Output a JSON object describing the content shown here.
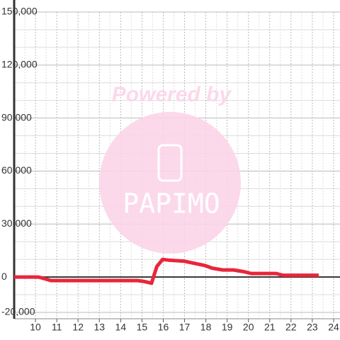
{
  "chart_data": {
    "type": "line",
    "watermark": {
      "line1": "Powered by",
      "line2": "PAPIMO"
    },
    "x": [
      9.0,
      10.13,
      10.3,
      10.73,
      14.8,
      15.1,
      15.45,
      15.7,
      15.97,
      16.3,
      16.97,
      17.97,
      18.3,
      18.8,
      19.3,
      19.8,
      20.13,
      21.3,
      21.63,
      23.3
    ],
    "series": [
      {
        "color": "#e8263c",
        "values": [
          0,
          0,
          -500,
          -2000,
          -2000,
          -2500,
          -3500,
          6000,
          10000,
          9500,
          9000,
          6500,
          5000,
          4000,
          4000,
          3000,
          2000,
          2000,
          1000,
          1000
        ]
      }
    ],
    "xlim": [
      9,
      24.3
    ],
    "xticks": [
      10,
      11,
      12,
      13,
      14,
      15,
      16,
      17,
      18,
      19,
      20,
      21,
      22,
      23,
      24
    ],
    "x_minor_ticks": [
      9.5,
      10.5,
      11.5,
      12.5,
      13.5,
      14.5,
      15.5,
      16.5,
      17.5,
      18.5,
      19.5,
      20.5,
      21.5,
      22.5,
      23.5
    ],
    "ylim": [
      -20000,
      150000
    ],
    "yticks": [
      {
        "value": -20000,
        "label": "-20,000"
      },
      0,
      {
        "value": 30000,
        "label": "30,000"
      },
      {
        "value": 60000,
        "label": "60,000"
      },
      {
        "value": 90000,
        "label": "90,000"
      },
      {
        "value": 120000,
        "label": "120,000"
      },
      {
        "value": 150000,
        "label": "150,000"
      }
    ],
    "y_minor_ticks": [
      -10000,
      10000,
      20000,
      40000,
      50000,
      70000,
      80000,
      100000,
      110000,
      130000,
      140000
    ],
    "grid": true
  }
}
